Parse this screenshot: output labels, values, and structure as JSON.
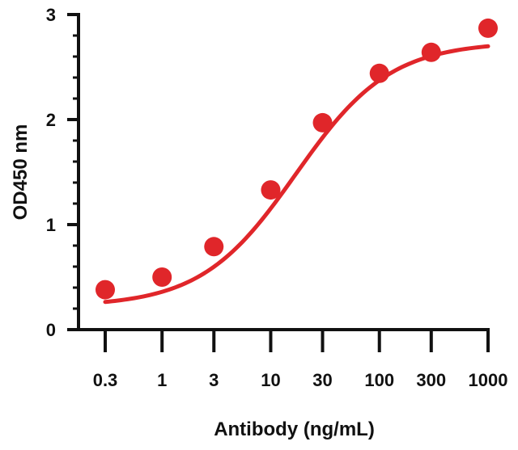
{
  "chart_data": {
    "type": "scatter",
    "title": "",
    "xlabel": "Antibody (ng/mL)",
    "ylabel": "OD450 nm",
    "xscale": "log",
    "x_ticks": [
      0.3,
      1,
      3,
      10,
      30,
      100,
      300,
      1000
    ],
    "x_tick_labels": [
      "0.3",
      "1",
      "3",
      "10",
      "30",
      "100",
      "300",
      "1000"
    ],
    "y_ticks": [
      0,
      1,
      2,
      3
    ],
    "y_tick_labels": [
      "0",
      "1",
      "2",
      "3"
    ],
    "xlim": [
      0.3,
      1000
    ],
    "ylim": [
      0,
      3
    ],
    "grid": false,
    "legend": "none",
    "color": "#e0262a",
    "series": [
      {
        "x": [
          0.3,
          1,
          3,
          10,
          30,
          100,
          300,
          1000
        ],
        "y": [
          0.38,
          0.5,
          0.79,
          1.33,
          1.97,
          2.44,
          2.64,
          2.87
        ]
      }
    ],
    "fit_curve": {
      "model": "4PL",
      "bottom": 0.22,
      "top": 2.74,
      "ec50": 17,
      "hill": 1.0
    }
  }
}
